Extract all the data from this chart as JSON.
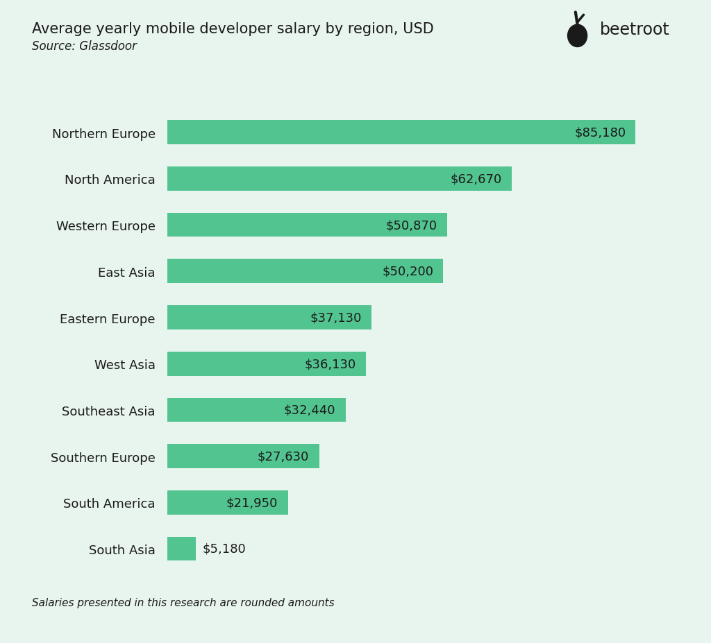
{
  "title": "Average yearly mobile developer salary by region, USD",
  "source": "Source: Glassdoor",
  "footnote": "Salaries presented in this research are rounded amounts",
  "background_color": "#e8f5ee",
  "bar_color": "#52c490",
  "text_color": "#1a1a1a",
  "label_color": "#1a1a1a",
  "categories": [
    "Northern Europe",
    "North America",
    "Western Europe",
    "East Asia",
    "Eastern Europe",
    "West Asia",
    "Southeast Asia",
    "Southern Europe",
    "South America",
    "South Asia"
  ],
  "values": [
    85180,
    62670,
    50870,
    50200,
    37130,
    36130,
    32440,
    27630,
    21950,
    5180
  ],
  "labels": [
    "$85,180",
    "$62,670",
    "$50,870",
    "$50,200",
    "$37,130",
    "$36,130",
    "$32,440",
    "$27,630",
    "$21,950",
    "$5,180"
  ],
  "xlim": [
    0,
    95000
  ],
  "title_fontsize": 15,
  "source_fontsize": 12,
  "label_fontsize": 13,
  "category_fontsize": 13,
  "footnote_fontsize": 11,
  "small_value_threshold": 10000
}
